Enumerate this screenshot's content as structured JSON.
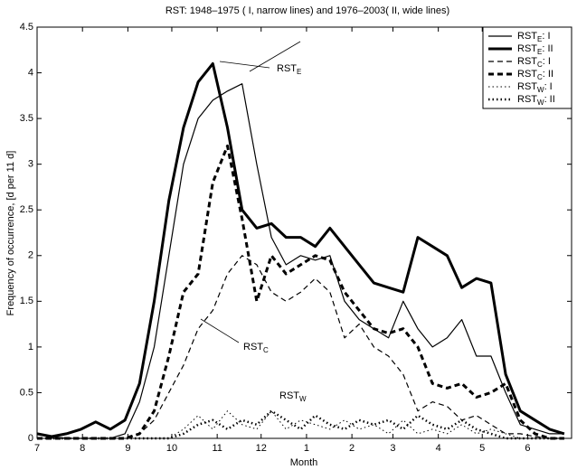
{
  "chart_data": {
    "type": "line",
    "title": "RST: 1948–1975 ( I, narrow lines) and 1976–2003( II, wide lines)",
    "x_label": "Month",
    "y_label": "Frequency of occurrence, [d per 11 d]",
    "x": [
      0,
      10,
      20,
      30,
      40,
      50,
      60,
      70,
      80,
      90,
      100,
      110,
      120,
      130,
      140,
      150,
      160,
      170,
      180,
      190,
      200,
      210,
      220,
      230,
      240,
      250,
      260,
      270,
      280,
      290,
      300,
      310,
      320,
      330,
      340,
      350,
      360
    ],
    "xlim": [
      0,
      365
    ],
    "xticks": [
      {
        "value": 0,
        "label": "7"
      },
      {
        "value": 31,
        "label": "8"
      },
      {
        "value": 62,
        "label": "9"
      },
      {
        "value": 92,
        "label": "10"
      },
      {
        "value": 123,
        "label": "11"
      },
      {
        "value": 153,
        "label": "12"
      },
      {
        "value": 184,
        "label": "1"
      },
      {
        "value": 215,
        "label": "2"
      },
      {
        "value": 243,
        "label": "3"
      },
      {
        "value": 274,
        "label": "4"
      },
      {
        "value": 304,
        "label": "5"
      },
      {
        "value": 335,
        "label": "6"
      }
    ],
    "ylim": [
      0,
      4.5
    ],
    "yticks": [
      0,
      0.5,
      1,
      1.5,
      2,
      2.5,
      3,
      3.5,
      4,
      4.5
    ],
    "legend_position": "upper right",
    "series": [
      {
        "name": "RST",
        "subscript": "E",
        "suffix": ": I",
        "color": "#000000",
        "linewidth": 1.2,
        "dash": "solid",
        "values": [
          0.05,
          0.02,
          0,
          0,
          0,
          0,
          0.05,
          0.4,
          1.0,
          2.0,
          3.0,
          3.5,
          3.7,
          3.8,
          3.88,
          3.0,
          2.2,
          1.9,
          2.0,
          1.95,
          2.0,
          1.5,
          1.3,
          1.2,
          1.1,
          1.5,
          1.2,
          1.0,
          1.1,
          1.3,
          0.9,
          0.9,
          0.5,
          0.15,
          0.1,
          0.05,
          0.05
        ]
      },
      {
        "name": "RST",
        "subscript": "E",
        "suffix": ": II",
        "color": "#000000",
        "linewidth": 3,
        "dash": "solid",
        "values": [
          0.05,
          0.02,
          0.05,
          0.1,
          0.18,
          0.1,
          0.2,
          0.6,
          1.5,
          2.6,
          3.4,
          3.9,
          4.1,
          3.4,
          2.5,
          2.3,
          2.35,
          2.2,
          2.2,
          2.1,
          2.3,
          2.1,
          1.9,
          1.7,
          1.65,
          1.6,
          2.2,
          2.1,
          2.0,
          1.65,
          1.75,
          1.7,
          0.7,
          0.3,
          0.2,
          0.1,
          0.05
        ]
      },
      {
        "name": "RST",
        "subscript": "C",
        "suffix": ": I",
        "color": "#000000",
        "linewidth": 1.2,
        "dash": "dashed",
        "values": [
          0,
          0,
          0,
          0,
          0,
          0,
          0,
          0.05,
          0.2,
          0.5,
          0.8,
          1.2,
          1.4,
          1.8,
          2.0,
          1.9,
          1.6,
          1.5,
          1.6,
          1.75,
          1.6,
          1.1,
          1.25,
          1.0,
          0.9,
          0.7,
          0.3,
          0.4,
          0.35,
          0.2,
          0.25,
          0.15,
          0.05,
          0.05,
          0.02,
          0,
          0
        ]
      },
      {
        "name": "RST",
        "subscript": "C",
        "suffix": ": II",
        "color": "#000000",
        "linewidth": 3,
        "dash": "dashed",
        "values": [
          0,
          0,
          0,
          0,
          0,
          0,
          0,
          0.05,
          0.3,
          0.9,
          1.6,
          1.8,
          2.8,
          3.2,
          2.4,
          1.5,
          2.0,
          1.8,
          1.9,
          2.0,
          1.95,
          1.6,
          1.4,
          1.2,
          1.15,
          1.2,
          1.0,
          0.6,
          0.55,
          0.6,
          0.45,
          0.5,
          0.6,
          0.2,
          0.05,
          0,
          0
        ]
      },
      {
        "name": "RST",
        "subscript": "W",
        "suffix": ": I",
        "color": "#000000",
        "linewidth": 1,
        "dash": "dotted",
        "values": [
          0,
          0,
          0,
          0,
          0,
          0,
          0,
          0,
          0,
          0,
          0.1,
          0.25,
          0.1,
          0.3,
          0.15,
          0.1,
          0.3,
          0.1,
          0.2,
          0.15,
          0.1,
          0.2,
          0.1,
          0.15,
          0.05,
          0.2,
          0.05,
          0.1,
          0.05,
          0.15,
          0.05,
          0.1,
          0.05,
          0,
          0,
          0,
          0
        ]
      },
      {
        "name": "RST",
        "subscript": "W",
        "suffix": ": II",
        "color": "#000000",
        "linewidth": 2.5,
        "dash": "dotted",
        "values": [
          0,
          0,
          0,
          0,
          0,
          0,
          0,
          0,
          0,
          0,
          0.05,
          0.15,
          0.2,
          0.1,
          0.2,
          0.15,
          0.3,
          0.2,
          0.1,
          0.25,
          0.15,
          0.1,
          0.2,
          0.15,
          0.2,
          0.1,
          0.25,
          0.15,
          0.1,
          0.2,
          0.1,
          0.05,
          0,
          0,
          0,
          0,
          0
        ]
      }
    ],
    "annotations": [
      {
        "text": "RST",
        "subscript": "E"
      },
      {
        "text": "RST",
        "subscript": "C"
      },
      {
        "text": "RST",
        "subscript": "W"
      }
    ]
  }
}
